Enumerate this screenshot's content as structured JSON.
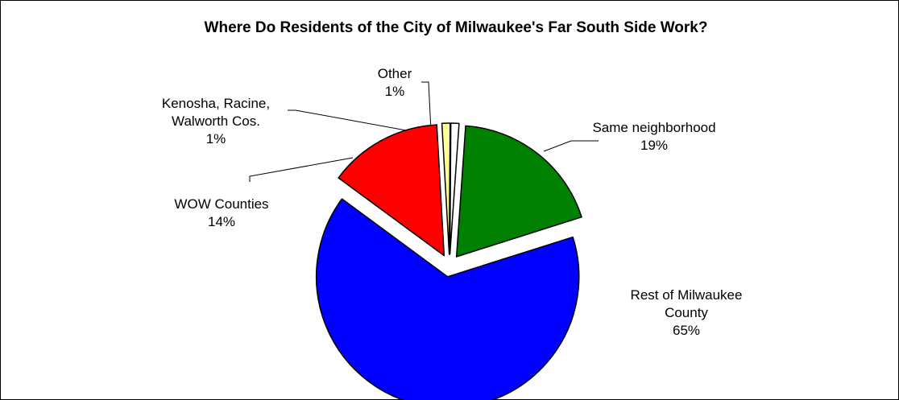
{
  "chart_data": {
    "type": "pie",
    "title": "Where Do Residents of the City of Milwaukee's Far South Side Work?",
    "exploded": true,
    "slices": [
      {
        "key": "same",
        "label_lines": [
          "Same neighborhood",
          "19%"
        ],
        "value": 19,
        "color": "#008000"
      },
      {
        "key": "rest",
        "label_lines": [
          "Rest of Milwaukee",
          "County",
          "65%"
        ],
        "value": 65,
        "color": "#0000FF"
      },
      {
        "key": "wow",
        "label_lines": [
          "WOW Counties",
          "14%"
        ],
        "value": 14,
        "color": "#FF0000"
      },
      {
        "key": "krw",
        "label_lines": [
          "Kenosha, Racine,",
          "Walworth Cos.",
          "1%"
        ],
        "value": 1,
        "color": "#FFFF99"
      },
      {
        "key": "other",
        "label_lines": [
          "Other",
          "1%"
        ],
        "value": 1,
        "color": "#FFFFFF"
      }
    ]
  }
}
